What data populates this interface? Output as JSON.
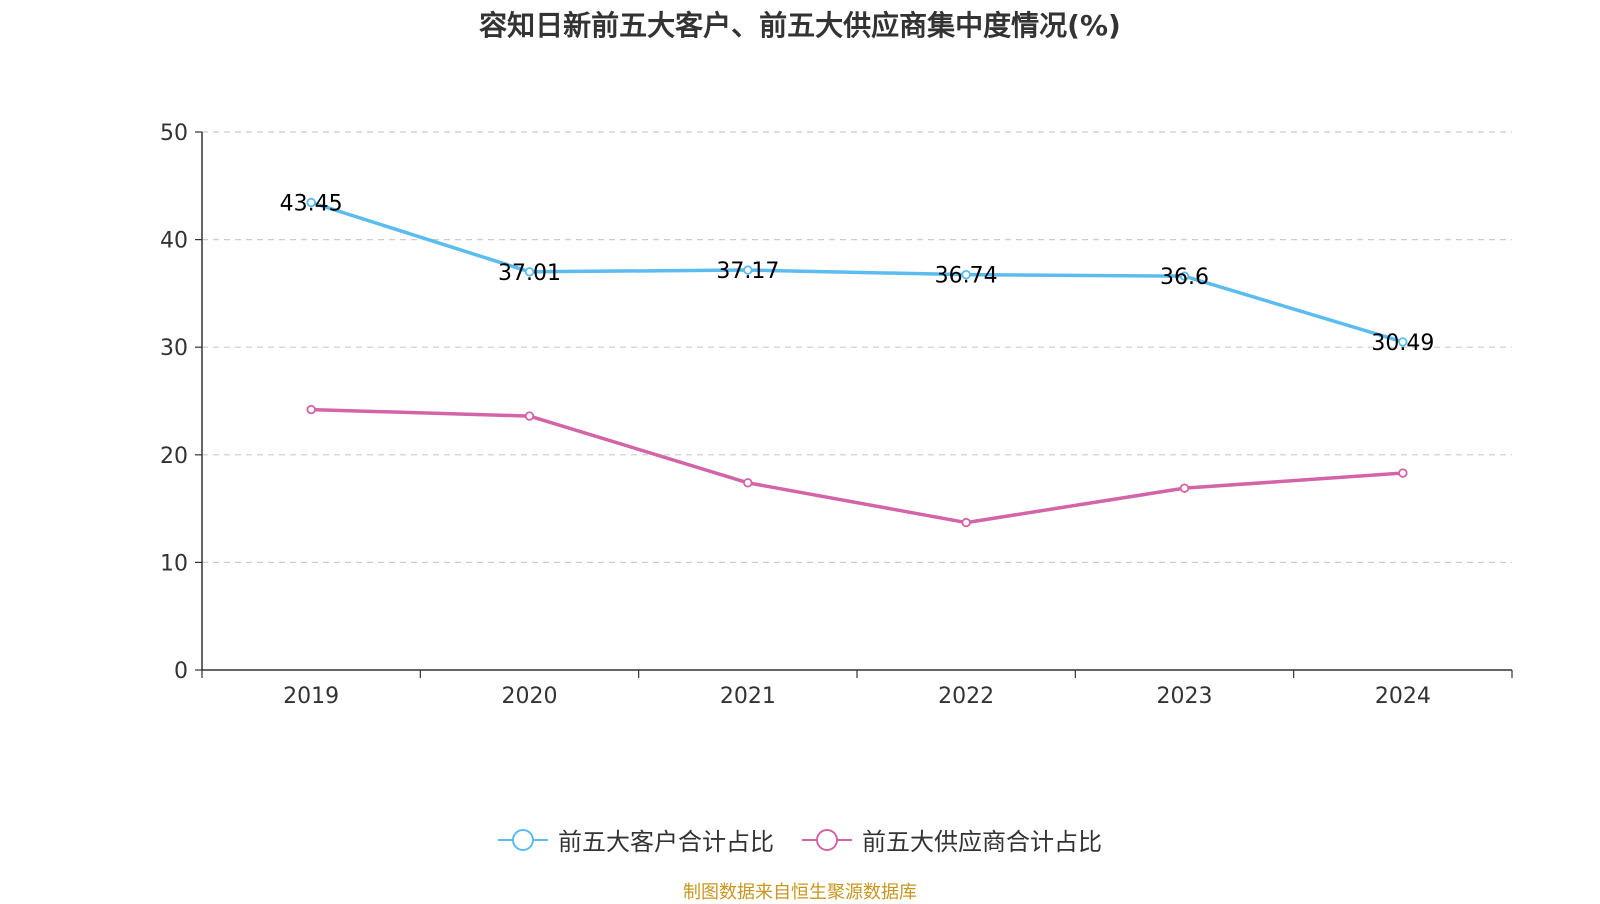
{
  "chart_data": {
    "type": "line",
    "title": "容知日新前五大客户、前五大供应商集中度情况(%)",
    "categories": [
      "2019",
      "2020",
      "2021",
      "2022",
      "2023",
      "2024"
    ],
    "series": [
      {
        "name": "前五大客户合计占比",
        "color": "#5bbcf0",
        "values": [
          43.45,
          37.01,
          37.17,
          36.74,
          36.6,
          30.49
        ],
        "value_labels": [
          "43.45",
          "37.01",
          "37.17",
          "36.74",
          "36.6",
          "30.49"
        ],
        "show_labels": true
      },
      {
        "name": "前五大供应商合计占比",
        "color": "#d464a8",
        "values": [
          24.2,
          23.6,
          17.4,
          13.7,
          16.9,
          18.3
        ],
        "show_labels": false
      }
    ],
    "ylim": [
      0,
      50
    ],
    "yticks": [
      "0",
      "10",
      "20",
      "30",
      "40",
      "50"
    ],
    "grid": true,
    "legend_position": "bottom"
  },
  "source_note": "制图数据来自恒生聚源数据库"
}
